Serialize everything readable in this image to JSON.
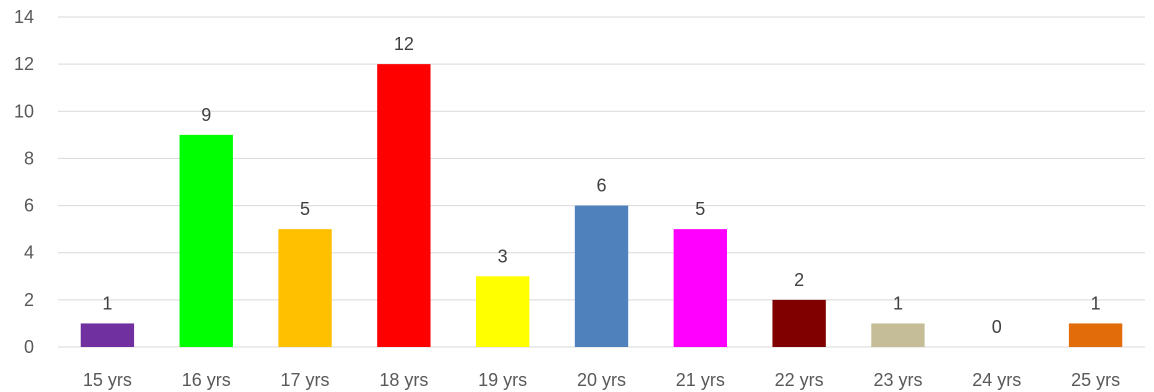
{
  "chart_data": {
    "type": "bar",
    "title": "",
    "xlabel": "",
    "ylabel": "",
    "categories": [
      "15 yrs",
      "16 yrs",
      "17 yrs",
      "18 yrs",
      "19 yrs",
      "20 yrs",
      "21 yrs",
      "22 yrs",
      "23 yrs",
      "24 yrs",
      "25 yrs"
    ],
    "values": [
      1,
      9,
      5,
      12,
      3,
      6,
      5,
      2,
      1,
      0,
      1
    ],
    "colors": [
      "#7030a0",
      "#00ff00",
      "#ffc000",
      "#ff0000",
      "#ffff00",
      "#4f81bd",
      "#ff00ff",
      "#800000",
      "#c4bd97",
      "#ffffff",
      "#e36c0a"
    ],
    "ylim": [
      0,
      14
    ],
    "yticks": [
      0,
      2,
      4,
      6,
      8,
      10,
      12,
      14
    ],
    "grid": true,
    "legend": "none",
    "data_labels": true
  }
}
